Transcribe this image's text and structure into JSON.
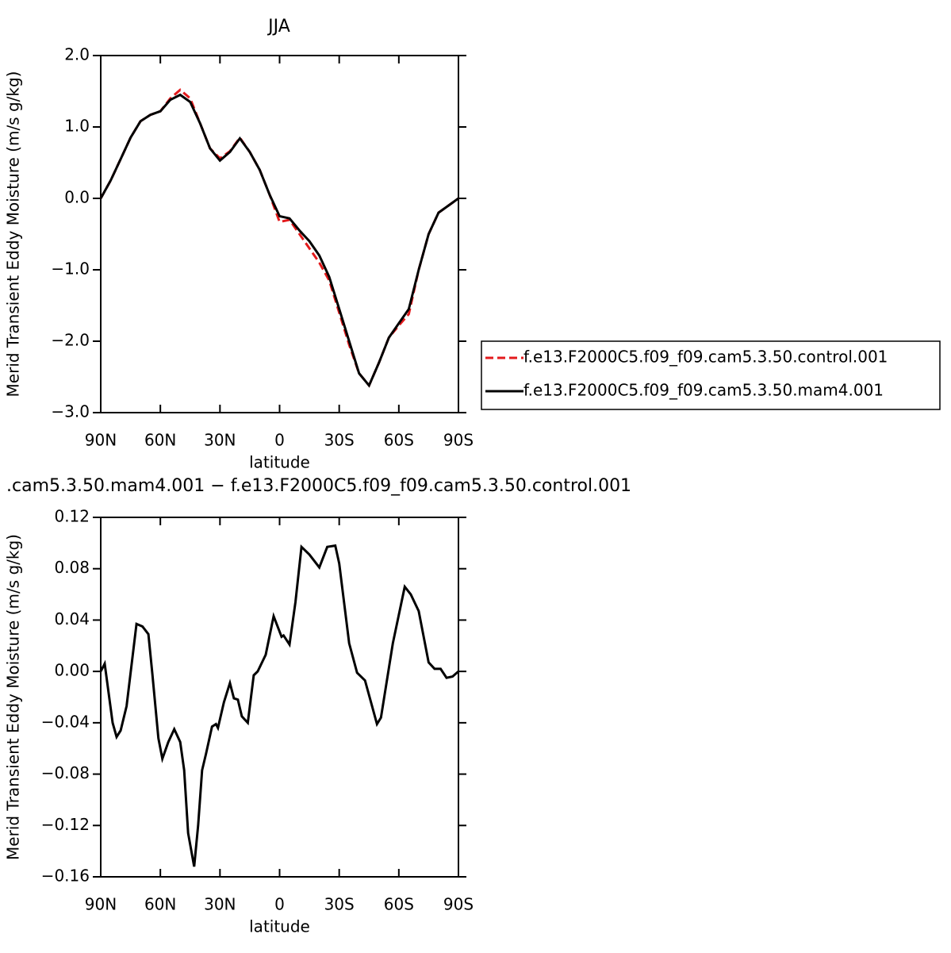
{
  "chart_data": [
    {
      "type": "line",
      "title": "JJA",
      "xlabel": "latitude",
      "ylabel": "Merid Transient Eddy Moisture (m/s g/kg)",
      "x": [
        90,
        85,
        80,
        75,
        70,
        65,
        60,
        55,
        50,
        45,
        40,
        35,
        30,
        25,
        20,
        15,
        10,
        5,
        0,
        -5,
        -10,
        -15,
        -20,
        -25,
        -30,
        -35,
        -40,
        -45,
        -50,
        -55,
        -60,
        -65,
        -70,
        -75,
        -80,
        -85,
        -90
      ],
      "series": [
        {
          "name": "f.e13.F2000C5.f09_f09.cam5.3.50.control.001",
          "color": "#e31a1c",
          "line_style": "dashed",
          "values": [
            0,
            0.25,
            0.55,
            0.85,
            1.08,
            1.17,
            1.22,
            1.4,
            1.52,
            1.4,
            1.05,
            0.7,
            0.56,
            0.66,
            0.85,
            0.65,
            0.4,
            0.05,
            -0.33,
            -0.3,
            -0.5,
            -0.7,
            -0.9,
            -1.15,
            -1.6,
            -2.05,
            -2.45,
            -2.62,
            -2.3,
            -1.95,
            -1.78,
            -1.62,
            -1.0,
            -0.5,
            -0.2,
            -0.1,
            0
          ]
        },
        {
          "name": "f.e13.F2000C5.f09_f09.cam5.3.50.mam4.001",
          "color": "#000000",
          "line_style": "solid",
          "values": [
            0,
            0.25,
            0.55,
            0.85,
            1.08,
            1.17,
            1.22,
            1.38,
            1.45,
            1.35,
            1.05,
            0.7,
            0.53,
            0.65,
            0.84,
            0.65,
            0.4,
            0.05,
            -0.25,
            -0.28,
            -0.45,
            -0.6,
            -0.8,
            -1.1,
            -1.55,
            -2.0,
            -2.45,
            -2.62,
            -2.3,
            -1.95,
            -1.75,
            -1.55,
            -1.0,
            -0.5,
            -0.2,
            -0.1,
            0
          ]
        }
      ],
      "legend": "right",
      "xlim": [
        90,
        -90
      ],
      "xticks": [
        {
          "value": 90,
          "label": "90N"
        },
        {
          "value": 60,
          "label": "60N"
        },
        {
          "value": 30,
          "label": "30N"
        },
        0,
        {
          "value": -30,
          "label": "30S"
        },
        {
          "value": -60,
          "label": "60S"
        },
        {
          "value": -90,
          "label": "90S"
        }
      ],
      "ylim": [
        -3,
        2
      ],
      "yticks": [
        {
          "value": 2,
          "label": "2.0"
        },
        {
          "value": 1,
          "label": "1.0"
        },
        {
          "value": 0,
          "label": "0.0"
        },
        {
          "value": -1,
          "label": "−1.0"
        },
        {
          "value": -2,
          "label": "−2.0"
        },
        {
          "value": -3,
          "label": "−3.0"
        }
      ]
    },
    {
      "type": "line",
      "title": ".cam5.3.50.mam4.001 − f.e13.F2000C5.f09_f09.cam5.3.50.control.001",
      "xlabel": "latitude",
      "ylabel": "Merid Transient Eddy Moisture (m/s g/kg)",
      "x": [
        90,
        88,
        84,
        82,
        80,
        77,
        72,
        69,
        66,
        64,
        61,
        59,
        56,
        53,
        50,
        48,
        46,
        43,
        41,
        39,
        37,
        34,
        32,
        31,
        28,
        25,
        23,
        21,
        19,
        16,
        13,
        11,
        7,
        3,
        1,
        -1,
        -2,
        -5,
        -8,
        -11,
        -15,
        -20,
        -24,
        -28,
        -30,
        -35,
        -39,
        -43,
        -49,
        -51,
        -57,
        -63,
        -66,
        -70,
        -75,
        -78,
        -81,
        -84,
        -87,
        -90
      ],
      "values": [
        0,
        0.006,
        -0.04,
        -0.051,
        -0.046,
        -0.027,
        0.037,
        0.035,
        0.029,
        -0.002,
        -0.052,
        -0.068,
        -0.055,
        -0.045,
        -0.055,
        -0.077,
        -0.126,
        -0.152,
        -0.12,
        -0.077,
        -0.064,
        -0.043,
        -0.041,
        -0.044,
        -0.024,
        -0.009,
        -0.021,
        -0.022,
        -0.035,
        -0.04,
        -0.003,
        0,
        0.013,
        0.043,
        0.035,
        0.027,
        0.028,
        0.021,
        0.054,
        0.097,
        0.091,
        0.081,
        0.097,
        0.098,
        0.084,
        0.022,
        -0.001,
        -0.007,
        -0.041,
        -0.036,
        0.022,
        0.066,
        0.06,
        0.047,
        0.007,
        0.002,
        0.002,
        -0.005,
        -0.004,
        0
      ],
      "color": "#000000",
      "line_style": "solid",
      "xlim": [
        90,
        -90
      ],
      "xticks": [
        {
          "value": 90,
          "label": "90N"
        },
        {
          "value": 60,
          "label": "60N"
        },
        {
          "value": 30,
          "label": "30N"
        },
        0,
        {
          "value": -30,
          "label": "30S"
        },
        {
          "value": -60,
          "label": "60S"
        },
        {
          "value": -90,
          "label": "90S"
        }
      ],
      "ylim": [
        -0.16,
        0.12
      ],
      "yticks": [
        0.12,
        0.08,
        0.04,
        {
          "value": 0,
          "label": "0.00"
        },
        {
          "value": -0.04,
          "label": "−0.04"
        },
        {
          "value": -0.08,
          "label": "−0.08"
        },
        {
          "value": -0.12,
          "label": "−0.12"
        },
        {
          "value": -0.16,
          "label": "−0.16"
        }
      ]
    }
  ]
}
